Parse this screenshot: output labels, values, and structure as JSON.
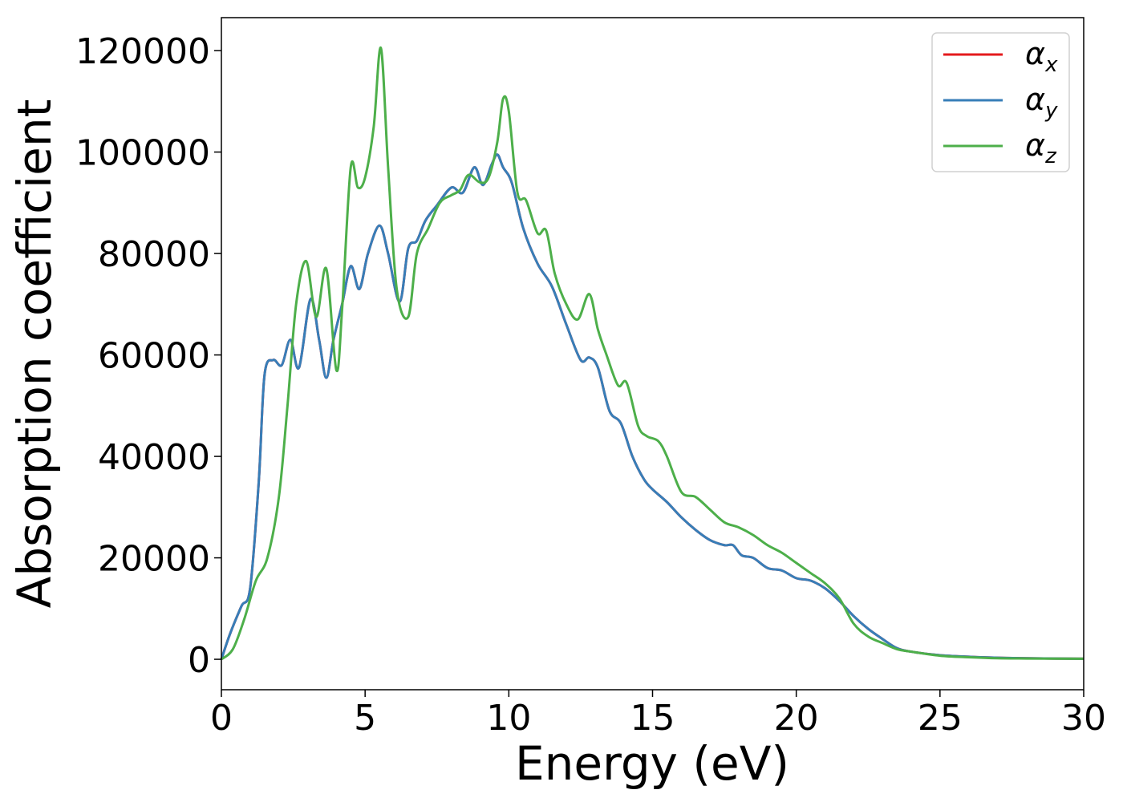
{
  "chart_data": {
    "type": "line",
    "title": "",
    "xlabel": "Energy (eV)",
    "ylabel": "Absorption coefficient",
    "xlim": [
      0,
      30
    ],
    "ylim": [
      -6000,
      126500
    ],
    "xticks": [
      0,
      5,
      10,
      15,
      20,
      25,
      30
    ],
    "yticks": [
      0,
      20000,
      40000,
      60000,
      80000,
      100000,
      120000
    ],
    "grid": false,
    "legend_position": "top-right",
    "series": [
      {
        "name": "α",
        "sub": "x",
        "color": "#e41a1c",
        "x": [
          0,
          0.3,
          0.7,
          1.0,
          1.3,
          1.5,
          1.8,
          2.1,
          2.4,
          2.7,
          3.1,
          3.4,
          3.65,
          3.9,
          4.2,
          4.5,
          4.8,
          5.1,
          5.5,
          5.8,
          6.2,
          6.5,
          6.8,
          7.1,
          7.5,
          8.0,
          8.4,
          8.8,
          9.1,
          9.4,
          9.6,
          9.8,
          10.1,
          10.5,
          11.0,
          11.5,
          12.0,
          12.5,
          12.8,
          13.1,
          13.5,
          13.9,
          14.3,
          14.7,
          15.0,
          15.5,
          16.0,
          16.5,
          17.0,
          17.5,
          17.8,
          18.1,
          18.5,
          19.0,
          19.5,
          20.0,
          20.5,
          21.0,
          21.5,
          22.0,
          22.5,
          23.0,
          23.5,
          24.0,
          25.0,
          26.0,
          27.0,
          28.0,
          30.0
        ],
        "y": [
          0,
          5000,
          10500,
          14000,
          35000,
          56000,
          59000,
          58000,
          63000,
          57500,
          71000,
          63000,
          55500,
          63000,
          70000,
          77500,
          73000,
          80000,
          85500,
          80000,
          70500,
          81000,
          82500,
          86500,
          89500,
          93000,
          92000,
          97000,
          93500,
          97500,
          99500,
          97000,
          94000,
          85000,
          78000,
          73500,
          66000,
          59000,
          59500,
          57500,
          49000,
          46500,
          40000,
          35500,
          33500,
          31000,
          28000,
          25500,
          23500,
          22500,
          22500,
          20500,
          20000,
          18000,
          17500,
          16000,
          15500,
          14000,
          11500,
          8500,
          6000,
          4000,
          2200,
          1500,
          800,
          500,
          300,
          200,
          100
        ]
      },
      {
        "name": "α",
        "sub": "y",
        "color": "#377eb8",
        "x": [
          0,
          0.3,
          0.7,
          1.0,
          1.3,
          1.5,
          1.8,
          2.1,
          2.4,
          2.7,
          3.1,
          3.4,
          3.65,
          3.9,
          4.2,
          4.5,
          4.8,
          5.1,
          5.5,
          5.8,
          6.2,
          6.5,
          6.8,
          7.1,
          7.5,
          8.0,
          8.4,
          8.8,
          9.1,
          9.4,
          9.6,
          9.8,
          10.1,
          10.5,
          11.0,
          11.5,
          12.0,
          12.5,
          12.8,
          13.1,
          13.5,
          13.9,
          14.3,
          14.7,
          15.0,
          15.5,
          16.0,
          16.5,
          17.0,
          17.5,
          17.8,
          18.1,
          18.5,
          19.0,
          19.5,
          20.0,
          20.5,
          21.0,
          21.5,
          22.0,
          22.5,
          23.0,
          23.5,
          24.0,
          25.0,
          26.0,
          27.0,
          28.0,
          30.0
        ],
        "y": [
          0,
          5000,
          10500,
          14000,
          35000,
          56000,
          59000,
          58000,
          63000,
          57500,
          71000,
          63000,
          55500,
          63000,
          70000,
          77500,
          73000,
          80000,
          85500,
          80000,
          70500,
          81000,
          82500,
          86500,
          89500,
          93000,
          92000,
          97000,
          93500,
          97500,
          99500,
          97000,
          94000,
          85000,
          78000,
          73500,
          66000,
          59000,
          59500,
          57500,
          49000,
          46500,
          40000,
          35500,
          33500,
          31000,
          28000,
          25500,
          23500,
          22500,
          22500,
          20500,
          20000,
          18000,
          17500,
          16000,
          15500,
          14000,
          11500,
          8500,
          6000,
          4000,
          2200,
          1500,
          800,
          500,
          300,
          200,
          100
        ]
      },
      {
        "name": "α",
        "sub": "z",
        "color": "#4daf4a",
        "x": [
          0,
          0.4,
          0.8,
          1.2,
          1.6,
          2.0,
          2.3,
          2.6,
          2.95,
          3.3,
          3.65,
          4.0,
          4.2,
          4.5,
          4.75,
          5.0,
          5.3,
          5.55,
          5.8,
          6.1,
          6.5,
          6.8,
          7.2,
          7.6,
          8.0,
          8.3,
          8.6,
          9.0,
          9.3,
          9.6,
          9.8,
          10.0,
          10.3,
          10.6,
          11.0,
          11.3,
          11.6,
          12.0,
          12.4,
          12.8,
          13.1,
          13.4,
          13.8,
          14.1,
          14.5,
          14.8,
          15.2,
          15.5,
          16.0,
          16.5,
          17.0,
          17.5,
          18.0,
          18.5,
          19.0,
          19.5,
          20.0,
          20.5,
          21.0,
          21.5,
          22.0,
          22.5,
          23.0,
          23.5,
          24.0,
          25.0,
          26.0,
          27.0,
          28.0,
          30.0
        ],
        "y": [
          0,
          2000,
          8000,
          15500,
          20000,
          32000,
          50000,
          70000,
          78500,
          67500,
          77000,
          57000,
          69000,
          97000,
          93000,
          95000,
          105000,
          120500,
          97000,
          73000,
          67500,
          80000,
          85000,
          90000,
          91500,
          92500,
          95500,
          94000,
          95000,
          102000,
          110500,
          108000,
          92000,
          90500,
          84000,
          84500,
          76000,
          70000,
          67000,
          72000,
          65000,
          60000,
          54000,
          54500,
          46000,
          44000,
          43000,
          40000,
          33000,
          32000,
          29500,
          27000,
          26000,
          24500,
          22500,
          21000,
          19000,
          17000,
          15000,
          12000,
          7000,
          4500,
          3200,
          2000,
          1500,
          700,
          400,
          200,
          150,
          100
        ]
      }
    ]
  }
}
